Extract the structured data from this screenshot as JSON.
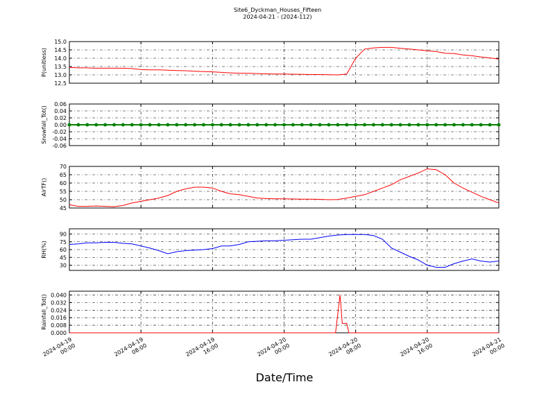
{
  "chart_data": [
    {
      "type": "line",
      "title": "Site6_Dyckman_Houses_Fifteen",
      "subtitle": "2024-04-21 - (2024-112)",
      "ylabel": "P(unitless)",
      "color": "#ff0000",
      "grid": true,
      "xlim": [
        "2024-04-19 00:00",
        "2024-04-21 00:00"
      ],
      "ylim": [
        12.5,
        15.0
      ],
      "yticks": [
        12.5,
        {
          "value": 13,
          "label": "13.0"
        },
        13.5,
        {
          "value": 14,
          "label": "14.0"
        },
        14.5,
        {
          "value": 15,
          "label": "15.0"
        }
      ],
      "x": [
        "2024-04-19 00:00",
        "2024-04-19 01:00",
        "2024-04-19 02:00",
        "2024-04-19 03:00",
        "2024-04-19 04:00",
        "2024-04-19 05:00",
        "2024-04-19 06:00",
        "2024-04-19 07:00",
        "2024-04-19 08:00",
        "2024-04-19 09:00",
        "2024-04-19 10:00",
        "2024-04-19 11:00",
        "2024-04-19 12:00",
        "2024-04-19 13:00",
        "2024-04-19 14:00",
        "2024-04-19 15:00",
        "2024-04-19 16:00",
        "2024-04-19 17:00",
        "2024-04-19 18:00",
        "2024-04-19 19:00",
        "2024-04-19 20:00",
        "2024-04-19 21:00",
        "2024-04-19 22:00",
        "2024-04-19 23:00",
        "2024-04-20 00:00",
        "2024-04-20 01:00",
        "2024-04-20 02:00",
        "2024-04-20 03:00",
        "2024-04-20 04:00",
        "2024-04-20 05:00",
        "2024-04-20 06:00",
        "2024-04-20 07:00",
        "2024-04-20 08:00",
        "2024-04-20 09:00",
        "2024-04-20 10:00",
        "2024-04-20 11:00",
        "2024-04-20 12:00",
        "2024-04-20 13:00",
        "2024-04-20 14:00",
        "2024-04-20 15:00",
        "2024-04-20 16:00",
        "2024-04-20 17:00",
        "2024-04-20 18:00",
        "2024-04-20 19:00",
        "2024-04-20 20:00",
        "2024-04-20 21:00",
        "2024-04-20 22:00",
        "2024-04-20 23:00",
        "2024-04-21 00:00"
      ],
      "values": [
        13.45,
        13.42,
        13.42,
        13.4,
        13.4,
        13.4,
        13.4,
        13.38,
        13.32,
        13.3,
        13.3,
        13.28,
        13.26,
        13.25,
        13.22,
        13.2,
        13.18,
        13.15,
        13.12,
        13.1,
        13.1,
        13.08,
        13.06,
        13.05,
        13.05,
        13.04,
        13.03,
        13.02,
        13.02,
        13.01,
        13.0,
        13.05,
        14.0,
        14.55,
        14.62,
        14.65,
        14.65,
        14.6,
        14.55,
        14.5,
        14.45,
        14.4,
        14.3,
        14.28,
        14.2,
        14.15,
        14.08,
        14.02,
        13.95
      ]
    },
    {
      "type": "line",
      "ylabel": "Snowfall_Tot()",
      "color": "#008000",
      "markers": true,
      "grid": true,
      "xlim": [
        "2024-04-19 00:00",
        "2024-04-21 00:00"
      ],
      "ylim": [
        -0.06,
        0.06
      ],
      "yticks": [
        -0.06,
        -0.04,
        -0.02,
        {
          "value": 0,
          "label": "0.00"
        },
        0.02,
        0.04,
        0.06
      ],
      "x": [
        "2024-04-19 00:00",
        "2024-04-19 01:00",
        "2024-04-19 02:00",
        "2024-04-19 03:00",
        "2024-04-19 04:00",
        "2024-04-19 05:00",
        "2024-04-19 06:00",
        "2024-04-19 07:00",
        "2024-04-19 08:00",
        "2024-04-19 09:00",
        "2024-04-19 10:00",
        "2024-04-19 11:00",
        "2024-04-19 12:00",
        "2024-04-19 13:00",
        "2024-04-19 14:00",
        "2024-04-19 15:00",
        "2024-04-19 16:00",
        "2024-04-19 17:00",
        "2024-04-19 18:00",
        "2024-04-19 19:00",
        "2024-04-19 20:00",
        "2024-04-19 21:00",
        "2024-04-19 22:00",
        "2024-04-19 23:00",
        "2024-04-20 00:00",
        "2024-04-20 01:00",
        "2024-04-20 02:00",
        "2024-04-20 03:00",
        "2024-04-20 04:00",
        "2024-04-20 05:00",
        "2024-04-20 06:00",
        "2024-04-20 07:00",
        "2024-04-20 08:00",
        "2024-04-20 09:00",
        "2024-04-20 10:00",
        "2024-04-20 11:00",
        "2024-04-20 12:00",
        "2024-04-20 13:00",
        "2024-04-20 14:00",
        "2024-04-20 15:00",
        "2024-04-20 16:00",
        "2024-04-20 17:00",
        "2024-04-20 18:00",
        "2024-04-20 19:00",
        "2024-04-20 20:00",
        "2024-04-20 21:00",
        "2024-04-20 22:00",
        "2024-04-20 23:00",
        "2024-04-21 00:00"
      ],
      "values": [
        0,
        0,
        0,
        0,
        0,
        0,
        0,
        0,
        0,
        0,
        0,
        0,
        0,
        0,
        0,
        0,
        0,
        0,
        0,
        0,
        0,
        0,
        0,
        0,
        0,
        0,
        0,
        0,
        0,
        0,
        0,
        0,
        0,
        0,
        0,
        0,
        0,
        0,
        0,
        0,
        0,
        0,
        0,
        0,
        0,
        0,
        0,
        0,
        0
      ]
    },
    {
      "type": "line",
      "ylabel": "AirTF()",
      "color": "#ff0000",
      "grid": true,
      "xlim": [
        "2024-04-19 00:00",
        "2024-04-21 00:00"
      ],
      "ylim": [
        45,
        70
      ],
      "yticks": [
        45,
        50,
        55,
        60,
        65,
        70
      ],
      "x": [
        "2024-04-19 00:00",
        "2024-04-19 01:00",
        "2024-04-19 02:00",
        "2024-04-19 03:00",
        "2024-04-19 04:00",
        "2024-04-19 05:00",
        "2024-04-19 06:00",
        "2024-04-19 07:00",
        "2024-04-19 08:00",
        "2024-04-19 09:00",
        "2024-04-19 10:00",
        "2024-04-19 11:00",
        "2024-04-19 12:00",
        "2024-04-19 13:00",
        "2024-04-19 14:00",
        "2024-04-19 15:00",
        "2024-04-19 16:00",
        "2024-04-19 17:00",
        "2024-04-19 18:00",
        "2024-04-19 19:00",
        "2024-04-19 20:00",
        "2024-04-19 21:00",
        "2024-04-19 22:00",
        "2024-04-19 23:00",
        "2024-04-20 00:00",
        "2024-04-20 01:00",
        "2024-04-20 02:00",
        "2024-04-20 03:00",
        "2024-04-20 04:00",
        "2024-04-20 05:00",
        "2024-04-20 06:00",
        "2024-04-20 07:00",
        "2024-04-20 08:00",
        "2024-04-20 09:00",
        "2024-04-20 10:00",
        "2024-04-20 11:00",
        "2024-04-20 12:00",
        "2024-04-20 13:00",
        "2024-04-20 14:00",
        "2024-04-20 15:00",
        "2024-04-20 16:00",
        "2024-04-20 17:00",
        "2024-04-20 18:00",
        "2024-04-20 19:00",
        "2024-04-20 20:00",
        "2024-04-20 21:00",
        "2024-04-20 22:00",
        "2024-04-20 23:00",
        "2024-04-21 00:00"
      ],
      "values": [
        47,
        46,
        46,
        46.2,
        46,
        45.8,
        46.5,
        48,
        49,
        50,
        51,
        52.5,
        55,
        56.5,
        57.5,
        57.5,
        57,
        55,
        53.5,
        53,
        52,
        51,
        50.7,
        50.5,
        50.5,
        50.4,
        50.3,
        50.3,
        50.2,
        50,
        50.1,
        51,
        52,
        53,
        55,
        57,
        59,
        62,
        64,
        66,
        68.5,
        68,
        65,
        60,
        57,
        54.5,
        52,
        50,
        48
      ]
    },
    {
      "type": "line",
      "ylabel": "RH(%)",
      "color": "#0000ff",
      "grid": true,
      "xlim": [
        "2024-04-19 00:00",
        "2024-04-21 00:00"
      ],
      "ylim": [
        20,
        100
      ],
      "yticks": [
        30,
        45,
        60,
        75,
        90
      ],
      "x": [
        "2024-04-19 00:00",
        "2024-04-19 01:00",
        "2024-04-19 02:00",
        "2024-04-19 03:00",
        "2024-04-19 04:00",
        "2024-04-19 05:00",
        "2024-04-19 06:00",
        "2024-04-19 07:00",
        "2024-04-19 08:00",
        "2024-04-19 09:00",
        "2024-04-19 10:00",
        "2024-04-19 11:00",
        "2024-04-19 12:00",
        "2024-04-19 13:00",
        "2024-04-19 14:00",
        "2024-04-19 15:00",
        "2024-04-19 16:00",
        "2024-04-19 17:00",
        "2024-04-19 18:00",
        "2024-04-19 19:00",
        "2024-04-19 20:00",
        "2024-04-19 21:00",
        "2024-04-19 22:00",
        "2024-04-19 23:00",
        "2024-04-20 00:00",
        "2024-04-20 01:00",
        "2024-04-20 02:00",
        "2024-04-20 03:00",
        "2024-04-20 04:00",
        "2024-04-20 05:00",
        "2024-04-20 06:00",
        "2024-04-20 07:00",
        "2024-04-20 08:00",
        "2024-04-20 09:00",
        "2024-04-20 10:00",
        "2024-04-20 11:00",
        "2024-04-20 12:00",
        "2024-04-20 13:00",
        "2024-04-20 14:00",
        "2024-04-20 15:00",
        "2024-04-20 16:00",
        "2024-04-20 17:00",
        "2024-04-20 18:00",
        "2024-04-20 19:00",
        "2024-04-20 20:00",
        "2024-04-20 21:00",
        "2024-04-20 22:00",
        "2024-04-20 23:00",
        "2024-04-21 00:00"
      ],
      "values": [
        70,
        71,
        73,
        73,
        74,
        74,
        72,
        71,
        67,
        63,
        58,
        52,
        56,
        58,
        59,
        60,
        62,
        67,
        67,
        70,
        75,
        76,
        77,
        77,
        78,
        79,
        80,
        80,
        83,
        86,
        88,
        89,
        89,
        89,
        87,
        80,
        63,
        55,
        47,
        40,
        30,
        26,
        26,
        33,
        38,
        42,
        38,
        36,
        38
      ]
    },
    {
      "type": "line",
      "ylabel": "Rainfall_Tot()",
      "xlabel": "Date/Time",
      "color": "#ff0000",
      "grid": true,
      "xlim": [
        "2024-04-19 00:00",
        "2024-04-21 00:00"
      ],
      "xticks": [
        {
          "value": "2024-04-19 00:00",
          "label": "2024-04-19\n00:00"
        },
        {
          "value": "2024-04-19 08:00",
          "label": "2024-04-19\n08:00"
        },
        {
          "value": "2024-04-19 16:00",
          "label": "2024-04-19\n16:00"
        },
        {
          "value": "2024-04-20 00:00",
          "label": "2024-04-20\n00:00"
        },
        {
          "value": "2024-04-20 08:00",
          "label": "2024-04-20\n08:00"
        },
        {
          "value": "2024-04-20 16:00",
          "label": "2024-04-20\n16:00"
        },
        {
          "value": "2024-04-21 00:00",
          "label": "2024-04-21\n00:00"
        }
      ],
      "ylim": [
        0,
        0.044
      ],
      "yticks": [
        {
          "value": 0,
          "label": "0.000"
        },
        0.008,
        0.016,
        0.024,
        0.032,
        {
          "value": 0.04,
          "label": "0.040"
        }
      ],
      "x": [
        "2024-04-19 00:00",
        "2024-04-20 05:45",
        "2024-04-20 06:15",
        "2024-04-20 06:30",
        "2024-04-20 07:00",
        "2024-04-20 07:15",
        "2024-04-21 00:00"
      ],
      "values": [
        0,
        0,
        0.04,
        0.01,
        0.01,
        0,
        0
      ]
    }
  ]
}
